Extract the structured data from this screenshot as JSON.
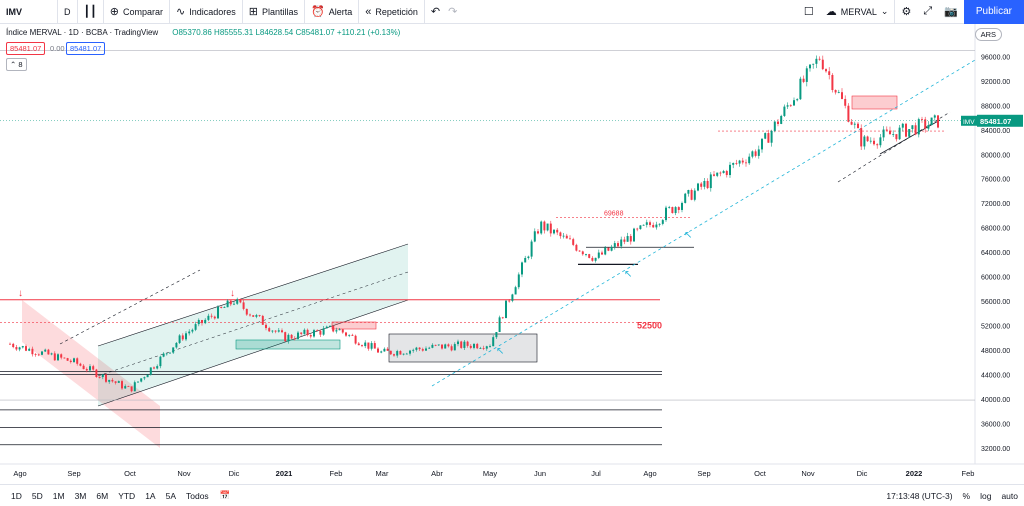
{
  "toolbar": {
    "symbol": "IMV",
    "interval": "D",
    "compare": "Comparar",
    "indicators": "Indicadores",
    "templates": "Plantillas",
    "alert": "Alerta",
    "replay": "Repetición",
    "layout_name": "MERVAL",
    "publish": "Publicar"
  },
  "legend": {
    "title": "Índice MERVAL · 1D · BCBA · TradingView",
    "open": "O85370.86",
    "high": "H85555.31",
    "low": "L84628.54",
    "close": "C85481.07",
    "change": "+110.21 (+0.13%)",
    "bid": "85481.07",
    "spread": "0.00",
    "ask": "85481.07",
    "collapsed_count": "8"
  },
  "currency": "ARS",
  "last_price_label": "85481.07",
  "last_price_symbol": "IMV",
  "colors": {
    "up": "#089981",
    "down": "#f23645",
    "accent": "#2962ff"
  },
  "bottombar": {
    "timeframes": [
      "1D",
      "5D",
      "1M",
      "3M",
      "6M",
      "YTD",
      "1A",
      "5A",
      "Todos"
    ],
    "time": "17:13:48 (UTC-3)",
    "percent": "%",
    "log": "log",
    "auto": "auto"
  },
  "chart_data": {
    "type": "line",
    "title": "",
    "xlabel": "",
    "ylabel": "",
    "ylim": [
      30000,
      100000
    ],
    "yticks": [
      32000,
      36000,
      40000,
      44000,
      48000,
      52000,
      56000,
      60000,
      64000,
      68000,
      72000,
      76000,
      80000,
      84000,
      88000,
      92000,
      96000
    ],
    "ytick_labels": [
      "32000.00",
      "36000.00",
      "40000.00",
      "44000.00",
      "48000.00",
      "52000.00",
      "56000.00",
      "60000.00",
      "64000.00",
      "68000.00",
      "72000.00",
      "76000.00",
      "80000.00",
      "84000.00",
      "88000.00",
      "92000.00",
      "96000.00"
    ],
    "xtick_labels": [
      "Ago",
      "Sep",
      "Oct",
      "Nov",
      "Dic",
      "2021",
      "Feb",
      "Mar",
      "Abr",
      "May",
      "Jun",
      "Jul",
      "Ago",
      "Sep",
      "Oct",
      "Nov",
      "Dic",
      "2022",
      "Feb"
    ],
    "series": [
      {
        "x": [
          "Ago 2020",
          "Sep 2020",
          "Oct 2020",
          "Nov 2020",
          "Dic 2020",
          "Ene 2021",
          "Feb 2021",
          "Mar 2021",
          "Abr 2021",
          "May 2021",
          "Jun 2021",
          "Jul 2021",
          "Ago 2021",
          "Sep 2021",
          "Oct 2021",
          "Nov 2021",
          "Dic 2021",
          "Ene 2022"
        ],
        "values": [
          49000,
          46000,
          41500,
          50500,
          56000,
          50000,
          51500,
          47500,
          48500,
          49000,
          68500,
          63000,
          68500,
          75000,
          81000,
          96000,
          82000,
          85481
        ]
      }
    ],
    "annotations": [
      "69688",
      "52500"
    ],
    "levels": [
      56200,
      52500,
      69688,
      44500,
      38000,
      35500,
      32500
    ]
  }
}
